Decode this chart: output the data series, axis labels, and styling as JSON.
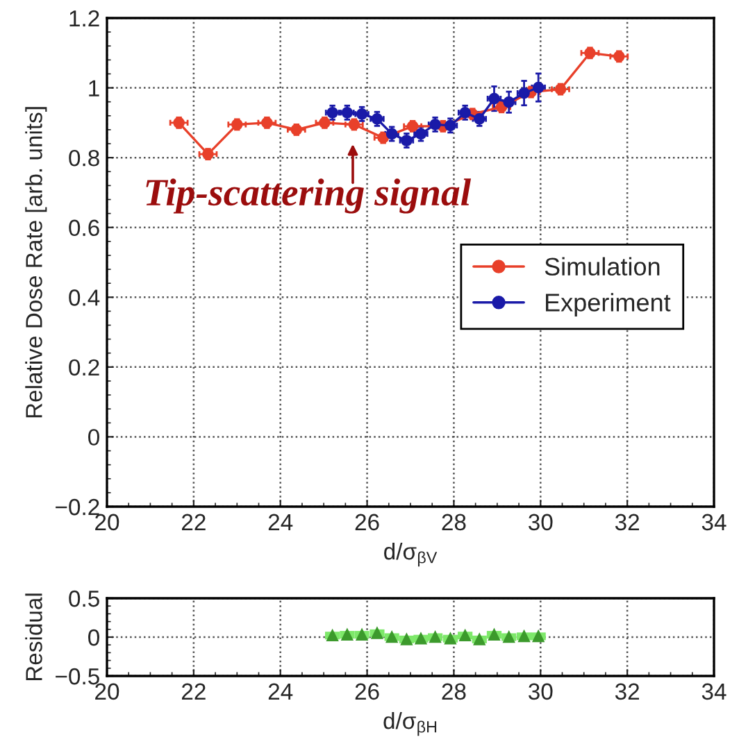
{
  "chart_data": [
    {
      "type": "line",
      "xlabel": "d/σ$_{βV}$",
      "ylabel": "Relative Dose Rate [arb. units]",
      "xlim": [
        20,
        34
      ],
      "xticks": [
        20,
        22,
        24,
        26,
        28,
        30,
        32,
        34
      ],
      "ylim": [
        -0.2,
        1.2
      ],
      "yticks": [
        {
          "value": -0.2,
          "label": "−0.2"
        },
        {
          "value": 0,
          "label": "0"
        },
        {
          "value": 0.2,
          "label": "0.2"
        },
        {
          "value": 0.4,
          "label": "0.4"
        },
        {
          "value": 0.6,
          "label": "0.6"
        },
        {
          "value": 0.8,
          "label": "0.8"
        },
        {
          "value": 1,
          "label": "1"
        },
        {
          "value": 1.2,
          "label": "1.2"
        }
      ],
      "grid": true,
      "legend": "right",
      "marker": "circle",
      "line_style": "solid",
      "annotations": [
        "Tip-scattering signal"
      ],
      "series": [
        {
          "name": "Simulation",
          "color": "#e8402a",
          "x": [
            21.66,
            22.33,
            23.0,
            23.69,
            24.37,
            25.02,
            25.7,
            26.37,
            27.05,
            27.75,
            28.43,
            29.1,
            29.78,
            30.46,
            31.14,
            31.81
          ],
          "values": [
            0.9,
            0.81,
            0.895,
            0.9,
            0.88,
            0.9,
            0.895,
            0.857,
            0.89,
            0.89,
            0.925,
            0.945,
            0.988,
            0.996,
            1.1,
            1.09
          ],
          "errors": [
            0.015,
            0.015,
            0.015,
            0.015,
            0.015,
            0.015,
            0.015,
            0.015,
            0.015,
            0.015,
            0.015,
            0.015,
            0.015,
            0.015,
            0.015,
            0.015
          ],
          "xerrors": [
            0.2,
            0.2,
            0.2,
            0.2,
            0.2,
            0.2,
            0.2,
            0.2,
            0.2,
            null,
            0.2,
            0.2,
            0.2,
            0.2,
            0.2,
            0.2
          ]
        },
        {
          "name": "Experiment",
          "color": "#1a1aa8",
          "x": [
            25.2,
            25.54,
            25.88,
            26.23,
            26.57,
            26.91,
            27.24,
            27.57,
            27.92,
            28.26,
            28.59,
            28.93,
            29.27,
            29.62,
            29.95
          ],
          "values": [
            0.929,
            0.929,
            0.925,
            0.911,
            0.868,
            0.849,
            0.868,
            0.895,
            0.892,
            0.929,
            0.911,
            0.969,
            0.959,
            0.985,
            1.001
          ],
          "errors": [
            0.02,
            0.02,
            0.02,
            0.02,
            0.02,
            0.02,
            0.02,
            0.02,
            0.02,
            0.02,
            0.02,
            0.035,
            0.03,
            0.035,
            0.04
          ],
          "xerrors": [
            0.15,
            0.15,
            0.15,
            0.15,
            0.15,
            0.15,
            0.15,
            0.15,
            0.15,
            0.15,
            0.15,
            0.15,
            0.15,
            0.15,
            0.15
          ]
        }
      ]
    },
    {
      "type": "scatter",
      "xlabel": "d/σ$_{βH}$",
      "ylabel": "Residual",
      "xlim": [
        20,
        34
      ],
      "xticks": [
        20,
        22,
        24,
        26,
        28,
        30,
        32,
        34
      ],
      "ylim": [
        -0.5,
        0.5
      ],
      "yticks": [
        {
          "value": -0.5,
          "label": "−0.5"
        },
        {
          "value": 0,
          "label": "0"
        },
        {
          "value": 0.5,
          "label": "0.5"
        }
      ],
      "grid": true,
      "marker": "triangle",
      "series": [
        {
          "color": "#3c9a2c",
          "x": [
            25.2,
            25.54,
            25.88,
            26.23,
            26.57,
            26.91,
            27.24,
            27.57,
            27.92,
            28.26,
            28.59,
            28.93,
            29.27,
            29.62,
            29.95
          ],
          "values": [
            0.02,
            0.03,
            0.03,
            0.05,
            0.0,
            -0.03,
            -0.02,
            0.0,
            -0.02,
            0.02,
            -0.03,
            0.03,
            0.0,
            0.01,
            0.01
          ],
          "xerrors": [
            0.17,
            0.17,
            0.17,
            0.17,
            0.17,
            0.17,
            0.17,
            0.17,
            0.17,
            0.17,
            0.17,
            0.17,
            0.17,
            0.17,
            0.17
          ]
        }
      ]
    }
  ]
}
